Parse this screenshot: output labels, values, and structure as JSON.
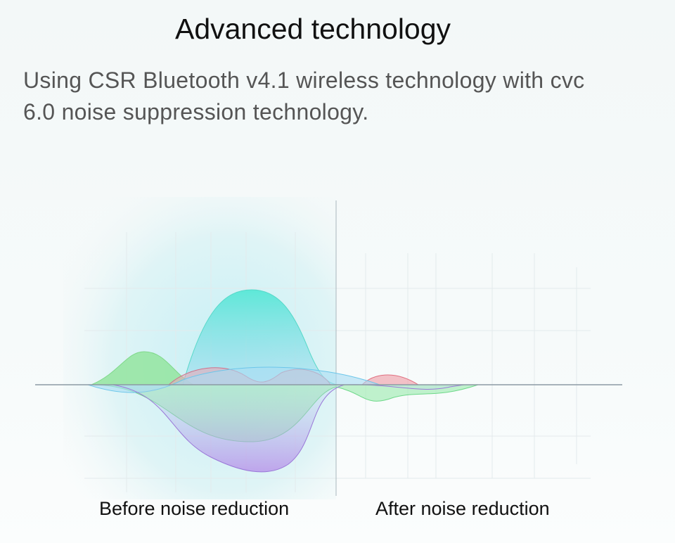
{
  "header": {
    "title": "Advanced technology",
    "description_lines": [
      "Using CSR Bluetooth v4.1 wireless technology with cvc",
      "6.0 noise suppression technology."
    ]
  },
  "labels": {
    "before": "Before noise reduction",
    "after": "After noise reduction"
  }
}
